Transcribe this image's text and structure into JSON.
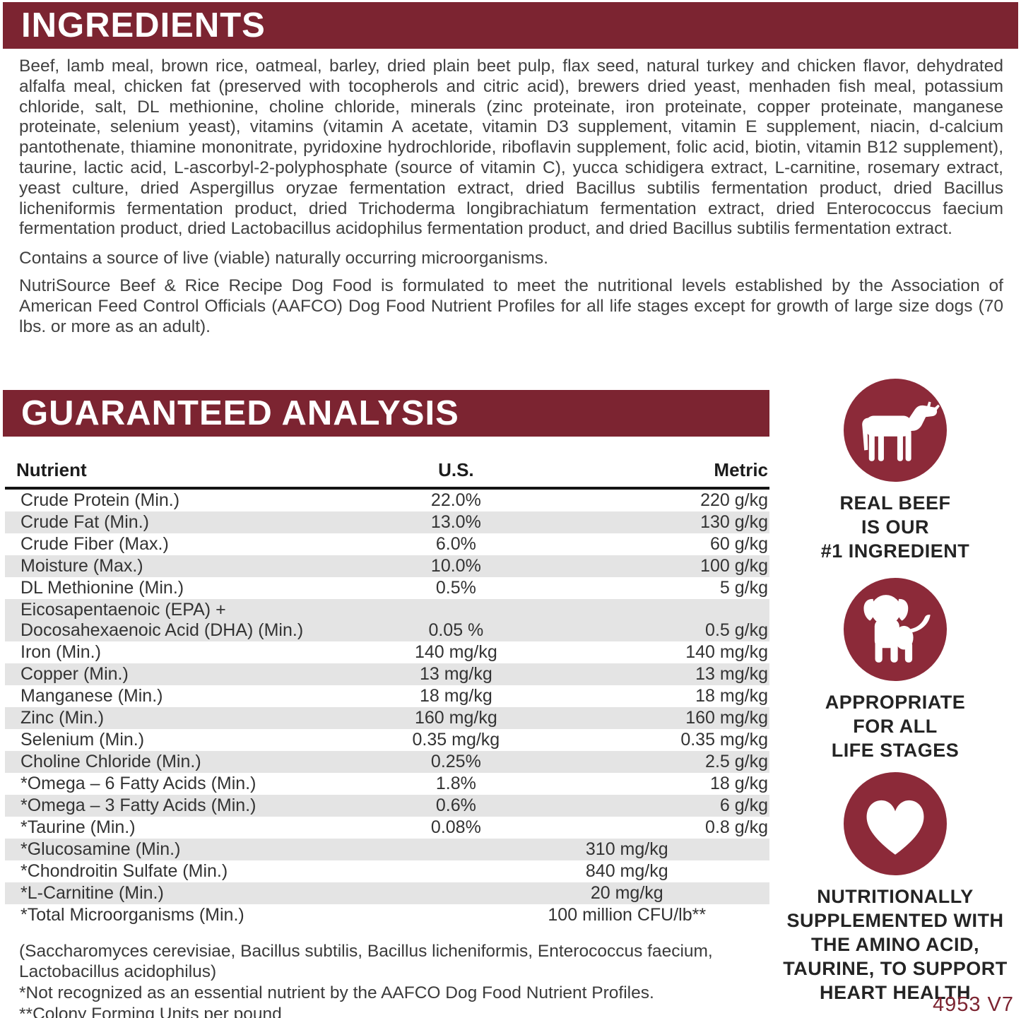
{
  "colors": {
    "band_maroon": "#7c2431",
    "icon_maroon": "#8c2a39",
    "row_shade": "#e4e4e4"
  },
  "ingredients": {
    "heading": "INGREDIENTS",
    "list": "Beef, lamb meal, brown rice, oatmeal, barley, dried plain beet pulp, flax seed, natural turkey and chicken flavor, dehydrated alfalfa meal, chicken fat (preserved with tocopherols and citric acid), brewers dried yeast, menhaden fish meal, potassium chloride, salt, DL methionine, choline chloride, minerals (zinc proteinate, iron proteinate, copper proteinate, manganese proteinate, selenium yeast), vitamins (vitamin A acetate, vitamin D3 supplement, vitamin E supplement, niacin, d-calcium pantothenate, thiamine mononitrate, pyridoxine hydrochloride, riboflavin supplement, folic acid, biotin, vitamin B12 supplement), taurine, lactic acid, L-ascorbyl-2-polyphosphate (source of vitamin C), yucca schidigera extract, L-carnitine, rosemary extract, yeast culture, dried Aspergillus oryzae fermentation extract, dried Bacillus subtilis fermentation product, dried Bacillus licheniformis fermentation product, dried Trichoderma longibrachiatum fermentation extract, dried Enterococcus faecium fermentation product, dried Lactobacillus acidophilus fermentation product, and dried Bacillus subtilis fermentation extract.",
    "contains_note": "Contains a source of live (viable) naturally occurring microorganisms.",
    "aafco_statement": "NutriSource Beef & Rice Recipe Dog Food is formulated to meet the nutritional levels established by the Association of American Feed Control Officials (AAFCO) Dog Food Nutrient Profiles for all life stages except for growth of large size dogs (70 lbs. or more as an adult)."
  },
  "guaranteed_analysis": {
    "heading": "GUARANTEED ANALYSIS",
    "columns": [
      "Nutrient",
      "U.S.",
      "Metric"
    ],
    "rows": [
      {
        "nutrient": "Crude Protein (Min.)",
        "us": "22.0%",
        "metric": "220 g/kg"
      },
      {
        "nutrient": "Crude Fat (Min.)",
        "us": "13.0%",
        "metric": "130 g/kg"
      },
      {
        "nutrient": "Crude Fiber (Max.)",
        "us": "6.0%",
        "metric": "60 g/kg"
      },
      {
        "nutrient": "Moisture (Max.)",
        "us": "10.0%",
        "metric": "100 g/kg"
      },
      {
        "nutrient": "DL Methionine (Min.)",
        "us": "0.5%",
        "metric": "5 g/kg"
      },
      {
        "nutrient": "Eicosapentaenoic (EPA) +\nDocosahexaenoic Acid (DHA) (Min.)",
        "us": "0.05 %",
        "metric": "0.5 g/kg"
      },
      {
        "nutrient": "Iron (Min.)",
        "us": "140 mg/kg",
        "metric": "140 mg/kg"
      },
      {
        "nutrient": "Copper (Min.)",
        "us": "13 mg/kg",
        "metric": "13 mg/kg"
      },
      {
        "nutrient": "Manganese (Min.)",
        "us": "18 mg/kg",
        "metric": "18 mg/kg"
      },
      {
        "nutrient": "Zinc (Min.)",
        "us": "160 mg/kg",
        "metric": "160 mg/kg"
      },
      {
        "nutrient": "Selenium (Min.)",
        "us": "0.35 mg/kg",
        "metric": "0.35 mg/kg"
      },
      {
        "nutrient": "Choline Chloride (Min.)",
        "us": "0.25%",
        "metric": "2.5 g/kg"
      },
      {
        "nutrient": "*Omega – 6 Fatty Acids (Min.)",
        "us": "1.8%",
        "metric": "18 g/kg"
      },
      {
        "nutrient": "*Omega – 3 Fatty Acids (Min.)",
        "us": "0.6%",
        "metric": "6 g/kg"
      },
      {
        "nutrient": "*Taurine (Min.)",
        "us": "0.08%",
        "metric": "0.8 g/kg"
      },
      {
        "nutrient": "*Glucosamine (Min.)",
        "value": "310 mg/kg"
      },
      {
        "nutrient": "*Chondroitin Sulfate (Min.)",
        "value": "840 mg/kg"
      },
      {
        "nutrient": "*L-Carnitine (Min.)",
        "value": "20 mg/kg"
      },
      {
        "nutrient": "*Total Microorganisms (Min.)",
        "value": "100 million CFU/lb**"
      }
    ],
    "footnotes": [
      "(Saccharomyces cerevisiae, Bacillus subtilis, Bacillus licheniformis, Enterococcus faecium, Lactobacillus acidophilus)",
      "*Not recognized as an essential nutrient by the AAFCO Dog Food Nutrient Profiles.",
      "**Colony Forming Units per pound"
    ]
  },
  "badges": [
    {
      "icon": "cow-icon",
      "caption": "REAL BEEF\nIS OUR\n#1 INGREDIENT"
    },
    {
      "icon": "dog-icon",
      "caption": "APPROPRIATE\nFOR ALL\nLIFE STAGES"
    },
    {
      "icon": "heart-icon",
      "caption": "NUTRITIONALLY\nSUPPLEMENTED WITH\nTHE AMINO ACID,\nTAURINE, TO SUPPORT\nHEART HEALTH"
    }
  ],
  "version_code": "4953 V7"
}
